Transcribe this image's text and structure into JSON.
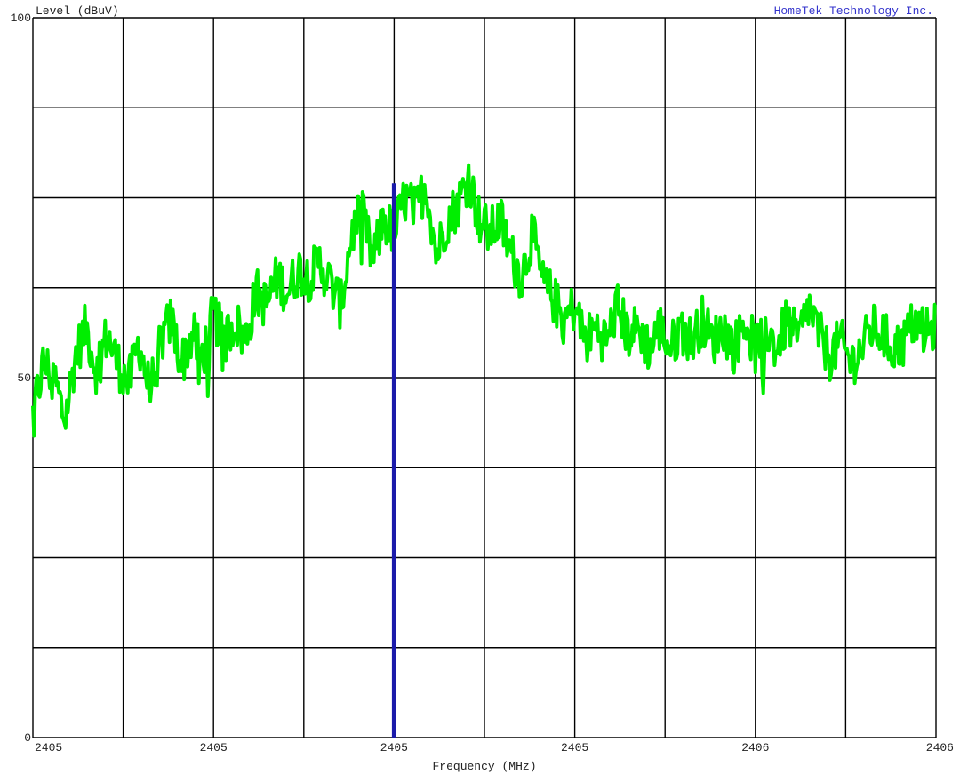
{
  "chart_data": {
    "type": "line",
    "ylabel": "Level (dBuV)",
    "xlabel": "Frequency (MHz)",
    "brand": "HomeTek Technology Inc.",
    "ylim": [
      0,
      100
    ],
    "y_tick_labels": [
      "100",
      "50",
      "0"
    ],
    "x_tick_labels": [
      "2405",
      "2405",
      "2405",
      "2405",
      "2406",
      "2406"
    ],
    "grid": true,
    "colors": {
      "trace": "#00ee00",
      "marker": "#1a1aaa",
      "grid": "#000000",
      "brand": "#3333cc"
    },
    "marker": {
      "x_fraction": 0.4,
      "level": 77
    },
    "series": [
      {
        "y": [
          45,
          52,
          50,
          44,
          53,
          57,
          51,
          56,
          52,
          49,
          55,
          48,
          55,
          58,
          52,
          56,
          53,
          59,
          55,
          58,
          55,
          62,
          60,
          64,
          62,
          65,
          64,
          66,
          63,
          60,
          70,
          73,
          66,
          72,
          70,
          75,
          73,
          77,
          67,
          72,
          74,
          78,
          72,
          70,
          72,
          67,
          64,
          70,
          63,
          61,
          58,
          60,
          55,
          57,
          55,
          60,
          56,
          57,
          54,
          57,
          54,
          57,
          55,
          58,
          55,
          57,
          54,
          58,
          54,
          57,
          54,
          58,
          55,
          60,
          56,
          53,
          55,
          52,
          54,
          57,
          56,
          54,
          55,
          58,
          56,
          57
        ]
      }
    ]
  }
}
